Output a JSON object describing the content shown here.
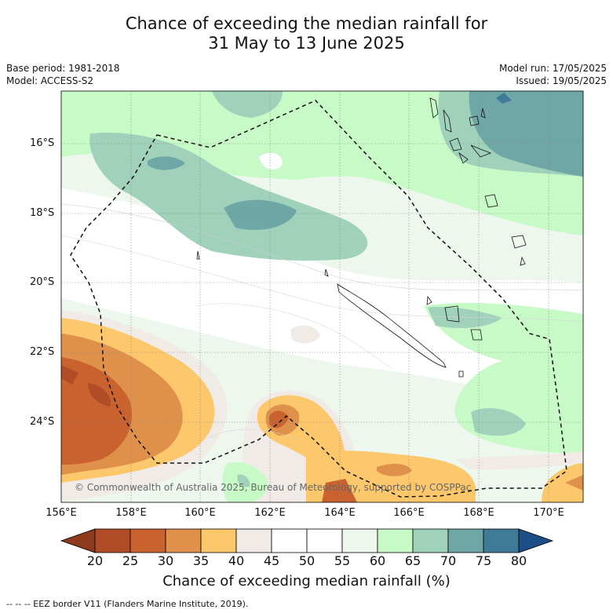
{
  "title_line1": "Chance of exceeding the median rainfall for",
  "title_line2": "31 May to 13 June 2025",
  "meta_left": [
    "Base period: 1981-2018",
    "Model: ACCESS-S2"
  ],
  "meta_right": [
    "Model run: 17/05/2025",
    "Issued: 19/05/2025"
  ],
  "lat_labels": [
    "16°S",
    "18°S",
    "20°S",
    "22°S",
    "24°S"
  ],
  "lon_labels": [
    "156°E",
    "158°E",
    "160°E",
    "162°E",
    "164°E",
    "166°E",
    "168°E",
    "170°E"
  ],
  "copyright": "© Commonwealth of Australia 2025, Bureau of Meteorology, supported by COSPPac",
  "colorbar": {
    "ticks": [
      "20",
      "25",
      "30",
      "35",
      "40",
      "45",
      "50",
      "55",
      "60",
      "65",
      "70",
      "75",
      "80"
    ],
    "label": "Chance of exceeding median rainfall (%)",
    "colors": [
      "#8e3a1c",
      "#b04c26",
      "#c9622f",
      "#df914c",
      "#fdc86b",
      "#f1ebe8",
      "#ffffff",
      "#ffffff",
      "#eef7ee",
      "#c8fac8",
      "#9fd1bb",
      "#6fa6a6",
      "#3f7a99",
      "#1c4f86"
    ]
  },
  "footer": "--  --  -- EEZ border V11 (Flanders Marine Institute, 2019)."
}
